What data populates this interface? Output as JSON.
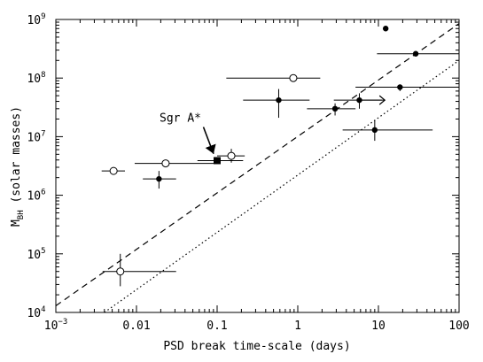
{
  "chart_data": {
    "type": "scatter",
    "xscale": "log",
    "yscale": "log",
    "xlim": [
      0.001,
      100
    ],
    "ylim": [
      10000,
      1000000000
    ],
    "grid": false,
    "xlabel": "PSD break time-scale (days)",
    "ylabel_main": "M",
    "ylabel_sub": "BH",
    "ylabel_tail": " (solar masses)",
    "x_tick_labels": [
      {
        "value": 0.001,
        "base": "10",
        "exp": "−3"
      },
      {
        "value": 0.01,
        "text": "0.01"
      },
      {
        "value": 0.1,
        "text": "0.1"
      },
      {
        "value": 1,
        "text": "1"
      },
      {
        "value": 10,
        "text": "10"
      },
      {
        "value": 100,
        "text": "100"
      }
    ],
    "y_tick_labels": [
      {
        "value": 10000,
        "base": "10",
        "exp": "4"
      },
      {
        "value": 100000,
        "base": "10",
        "exp": "5"
      },
      {
        "value": 1000000,
        "base": "10",
        "exp": "6"
      },
      {
        "value": 10000000,
        "base": "10",
        "exp": "7"
      },
      {
        "value": 100000000,
        "base": "10",
        "exp": "8"
      },
      {
        "value": 1000000000,
        "base": "10",
        "exp": "9"
      }
    ],
    "lines": [
      {
        "style": "dashed",
        "points": [
          [
            0.001,
            13000
          ],
          [
            100,
            850000000
          ]
        ]
      },
      {
        "style": "dotted",
        "points": [
          [
            0.004,
            10000
          ],
          [
            100,
            200000000
          ]
        ]
      }
    ],
    "series": [
      {
        "marker": "filled-circle",
        "points": [
          {
            "x": 0.019,
            "y": 1900000,
            "xerr": [
              0.012,
              0.031
            ],
            "yerr": [
              1300000,
              2600000
            ]
          },
          {
            "x": 0.58,
            "y": 42000000,
            "xerr": [
              0.21,
              1.4
            ],
            "yerr": [
              21000000,
              65000000
            ]
          },
          {
            "x": 2.9,
            "y": 30000000,
            "xerr": [
              1.3,
              5.2
            ],
            "yerr": [
              23000000,
              37000000
            ]
          },
          {
            "x": 5.8,
            "y": 42000000,
            "xerr": [
              2.8,
              11
            ],
            "yerr": [
              30000000,
              55000000
            ]
          },
          {
            "x": 9.0,
            "y": 13000000,
            "xerr": [
              3.6,
              47
            ],
            "yerr": [
              8500000,
              19000000
            ]
          },
          {
            "x": 12.3,
            "y": 700000000,
            "xerr": [
              12.3,
              12.3
            ],
            "yerr": [
              650000000,
              760000000
            ]
          },
          {
            "x": 18.5,
            "y": 70000000,
            "xerr": [
              5.2,
              100
            ],
            "yerr": [
              60000000,
              75000000
            ]
          },
          {
            "x": 29,
            "y": 260000000,
            "xerr": [
              9.6,
              100
            ],
            "yerr": [
              235000000,
              285000000
            ]
          }
        ]
      },
      {
        "marker": "open-circle",
        "points": [
          {
            "x": 0.0052,
            "y": 2600000,
            "xerr": [
              0.0037,
              0.0072
            ],
            "yerr": [
              2600000,
              2600000
            ]
          },
          {
            "x": 0.0063,
            "y": 50000,
            "xerr": [
              0.0038,
              0.031
            ],
            "yerr": [
              28000,
              100000
            ]
          },
          {
            "x": 0.023,
            "y": 3500000,
            "xerr": [
              0.0095,
              0.1
            ],
            "yerr": [
              3500000,
              3500000
            ]
          },
          {
            "x": 0.15,
            "y": 4700000,
            "xerr": [
              0.1,
              0.22
            ],
            "yerr": [
              3600000,
              6200000
            ]
          },
          {
            "x": 0.88,
            "y": 100000000,
            "xerr": [
              0.13,
              1.9
            ],
            "yerr": [
              100000000,
              100000000
            ]
          }
        ]
      },
      {
        "marker": "filled-square",
        "name": "Sgr A*",
        "points": [
          {
            "x": 0.1,
            "y": 3900000,
            "xerr": [
              0.057,
              0.21
            ],
            "yerr": [
              3900000,
              3900000
            ]
          }
        ]
      }
    ],
    "lower_limits": [
      {
        "x": 5.8,
        "y": 42000000,
        "arrow_to_x": 12
      }
    ],
    "annotations": [
      {
        "text": "Sgr A*",
        "label_x": 0.035,
        "label_y": 18000000,
        "arrow_to_x": 0.1,
        "arrow_to_y": 4000000
      }
    ]
  }
}
